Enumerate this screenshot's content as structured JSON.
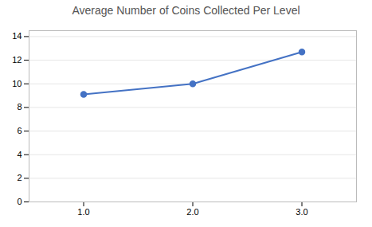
{
  "chart_data": {
    "type": "line",
    "title": "Average Number of Coins Collected Per Level",
    "x": [
      1,
      2,
      3
    ],
    "values": [
      9.1,
      10.0,
      12.7
    ],
    "color": "#4472C4",
    "marker": "circle",
    "xlim": [
      0.5,
      3.5
    ],
    "ylim": [
      0,
      14.5
    ],
    "xticks": [
      1,
      2,
      3
    ],
    "yticks": [
      0,
      2,
      4,
      6,
      8,
      10,
      12,
      14
    ],
    "grid": "y"
  }
}
